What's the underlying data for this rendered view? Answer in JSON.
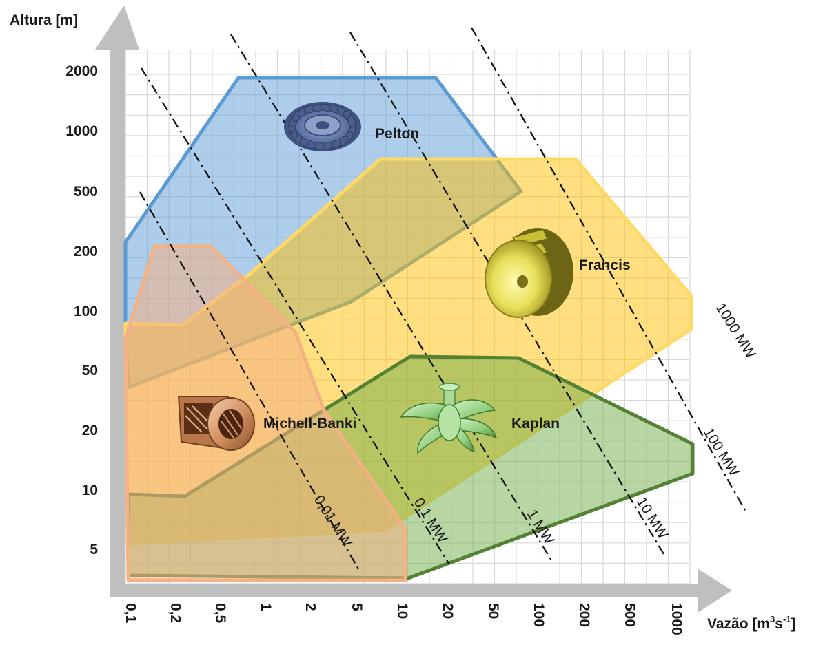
{
  "axes": {
    "y_title": "Altura [m]",
    "x_title_main": "Vazão [m",
    "x_title_sup1": "3",
    "x_title_mid": "s",
    "x_title_sup2": "-1",
    "x_title_end": "]",
    "y_ticks": [
      "2000",
      "1000",
      "500",
      "200",
      "100",
      "50",
      "20",
      "10",
      "5"
    ],
    "x_ticks": [
      "0,1",
      "0,2",
      "0,5",
      "1",
      "2",
      "5",
      "10",
      "20",
      "50",
      "100",
      "200",
      "500",
      "1000"
    ]
  },
  "regions": {
    "pelton": {
      "label": "Pelton",
      "stroke": "#5b9bd5",
      "fill": "#5b9bd5"
    },
    "francis": {
      "label": "Francis",
      "stroke": "#ffd966",
      "fill": "#ffc000"
    },
    "kaplan": {
      "label": "Kaplan",
      "stroke": "#548235",
      "fill": "#70ad47"
    },
    "michell": {
      "label": "Michell-Banki",
      "stroke": "#f4b183",
      "fill": "#f4b183"
    }
  },
  "power_lines": [
    "0,01 MW",
    "0,1 MW",
    "1 MW",
    "10 MW",
    "1000 MW",
    "100 MW"
  ],
  "icons": [
    "pelton-wheel-icon",
    "francis-runner-icon",
    "kaplan-runner-icon",
    "crossflow-turbine-icon"
  ]
}
